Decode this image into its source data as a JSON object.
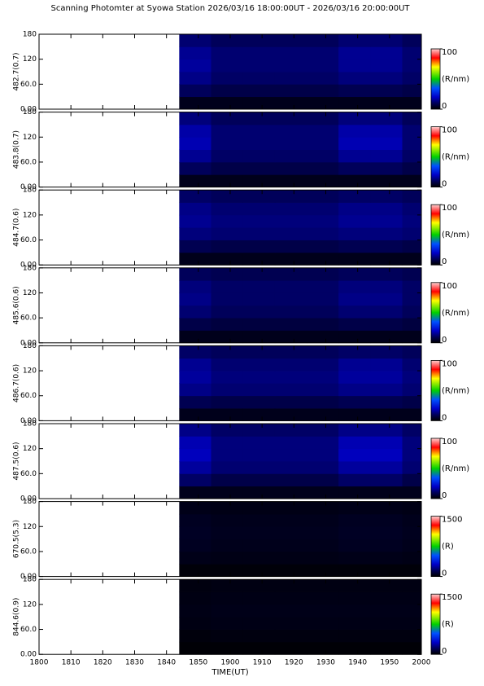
{
  "colorscale": [
    [
      0,
      "#000000"
    ],
    [
      0.1,
      "#00005a"
    ],
    [
      0.2,
      "#0000c8"
    ],
    [
      0.35,
      "#0050ff"
    ],
    [
      0.5,
      "#00d000"
    ],
    [
      0.7,
      "#ffff00"
    ],
    [
      0.85,
      "#ff0000"
    ],
    [
      1,
      "#ffd0d0"
    ]
  ],
  "chart_data": [
    {
      "type": "heatmap",
      "title": "Scanning Photomter at Syowa Station 2026/03/16 18:00:00UT - 2026/03/16 20:00:00UT",
      "ylabel": "482.7(0.7)",
      "xlim": [
        1080,
        1200
      ],
      "ylim": [
        0,
        180
      ],
      "yticks": [
        {
          "value": 0,
          "label": "0.00"
        },
        {
          "value": 60,
          "label": "60.0"
        },
        120,
        180
      ],
      "zlim": [
        0,
        100
      ],
      "zticks": [
        0,
        100
      ],
      "zlabel": "(R/nm)",
      "x_edges": [
        1124,
        1134,
        1144,
        1154,
        1164,
        1174,
        1184,
        1194,
        1200
      ],
      "y_edges": [
        0,
        30,
        60,
        90,
        120,
        150,
        180
      ],
      "z": [
        [
          3,
          3,
          3,
          3,
          3,
          3,
          3,
          3
        ],
        [
          10,
          8,
          8,
          8,
          8,
          9,
          9,
          8
        ],
        [
          14,
          11,
          11,
          11,
          11,
          13,
          13,
          11
        ],
        [
          16,
          12,
          12,
          12,
          12,
          15,
          15,
          12
        ],
        [
          15,
          12,
          12,
          12,
          12,
          15,
          15,
          12
        ],
        [
          12,
          10,
          10,
          10,
          10,
          12,
          12,
          10
        ]
      ]
    },
    {
      "type": "heatmap",
      "ylabel": "483.8(0.7)",
      "xlim": [
        1080,
        1200
      ],
      "ylim": [
        0,
        180
      ],
      "yticks": [
        {
          "value": 0,
          "label": "0.00"
        },
        {
          "value": 60,
          "label": "60.0"
        },
        120,
        180
      ],
      "zlim": [
        0,
        100
      ],
      "zticks": [
        0,
        100
      ],
      "zlabel": "(R/nm)",
      "x_edges": [
        1124,
        1134,
        1144,
        1154,
        1164,
        1174,
        1184,
        1194,
        1200
      ],
      "y_edges": [
        0,
        30,
        60,
        90,
        120,
        150,
        180
      ],
      "z": [
        [
          3,
          3,
          3,
          3,
          3,
          3,
          3,
          3
        ],
        [
          10,
          8,
          8,
          8,
          8,
          10,
          10,
          8
        ],
        [
          15,
          11,
          11,
          11,
          11,
          15,
          15,
          11
        ],
        [
          18,
          12,
          12,
          12,
          12,
          18,
          18,
          12
        ],
        [
          17,
          12,
          12,
          12,
          12,
          17,
          17,
          12
        ],
        [
          13,
          10,
          10,
          10,
          10,
          13,
          13,
          10
        ]
      ]
    },
    {
      "type": "heatmap",
      "ylabel": "484.7(0.6)",
      "xlim": [
        1080,
        1200
      ],
      "ylim": [
        0,
        180
      ],
      "yticks": [
        {
          "value": 0,
          "label": "0.00"
        },
        {
          "value": 60,
          "label": "60.0"
        },
        120,
        180
      ],
      "zlim": [
        0,
        100
      ],
      "zticks": [
        0,
        100
      ],
      "zlabel": "(R/nm)",
      "x_edges": [
        1124,
        1134,
        1144,
        1154,
        1164,
        1174,
        1184,
        1194,
        1200
      ],
      "y_edges": [
        0,
        30,
        60,
        90,
        120,
        150,
        180
      ],
      "z": [
        [
          3,
          3,
          3,
          3,
          3,
          3,
          3,
          3
        ],
        [
          9,
          8,
          8,
          8,
          8,
          9,
          9,
          8
        ],
        [
          13,
          12,
          12,
          12,
          12,
          13,
          13,
          12
        ],
        [
          15,
          13,
          13,
          13,
          13,
          15,
          15,
          13
        ],
        [
          14,
          12,
          12,
          12,
          12,
          14,
          14,
          12
        ],
        [
          11,
          10,
          10,
          10,
          10,
          11,
          11,
          10
        ]
      ]
    },
    {
      "type": "heatmap",
      "ylabel": "485.6(0.6)",
      "xlim": [
        1080,
        1200
      ],
      "ylim": [
        0,
        180
      ],
      "yticks": [
        {
          "value": 0,
          "label": "0.00"
        },
        {
          "value": 60,
          "label": "60.0"
        },
        120,
        180
      ],
      "zlim": [
        0,
        100
      ],
      "zticks": [
        0,
        100
      ],
      "zlabel": "(R/nm)",
      "x_edges": [
        1124,
        1134,
        1144,
        1154,
        1164,
        1174,
        1184,
        1194,
        1200
      ],
      "y_edges": [
        0,
        30,
        60,
        90,
        120,
        150,
        180
      ],
      "z": [
        [
          3,
          3,
          3,
          3,
          3,
          3,
          3,
          3
        ],
        [
          8,
          7,
          7,
          7,
          7,
          8,
          8,
          7
        ],
        [
          12,
          10,
          10,
          10,
          10,
          12,
          12,
          10
        ],
        [
          14,
          11,
          11,
          11,
          11,
          14,
          14,
          11
        ],
        [
          13,
          11,
          11,
          11,
          11,
          13,
          13,
          11
        ],
        [
          10,
          9,
          9,
          9,
          9,
          10,
          10,
          9
        ]
      ]
    },
    {
      "type": "heatmap",
      "ylabel": "486.7(0.6)",
      "xlim": [
        1080,
        1200
      ],
      "ylim": [
        0,
        180
      ],
      "yticks": [
        {
          "value": 0,
          "label": "0.00"
        },
        {
          "value": 60,
          "label": "60.0"
        },
        120,
        180
      ],
      "zlim": [
        0,
        100
      ],
      "zticks": [
        0,
        100
      ],
      "zlabel": "(R/nm)",
      "x_edges": [
        1124,
        1134,
        1144,
        1154,
        1164,
        1174,
        1184,
        1194,
        1200
      ],
      "y_edges": [
        0,
        30,
        60,
        90,
        120,
        150,
        180
      ],
      "z": [
        [
          3,
          3,
          3,
          3,
          3,
          3,
          3,
          3
        ],
        [
          9,
          8,
          8,
          8,
          8,
          9,
          9,
          8
        ],
        [
          14,
          12,
          12,
          12,
          12,
          14,
          14,
          12
        ],
        [
          16,
          13,
          13,
          13,
          13,
          16,
          16,
          13
        ],
        [
          15,
          12,
          12,
          12,
          12,
          15,
          15,
          12
        ],
        [
          11,
          10,
          10,
          10,
          10,
          11,
          11,
          10
        ]
      ]
    },
    {
      "type": "heatmap",
      "ylabel": "487.5(0.6)",
      "xlim": [
        1080,
        1200
      ],
      "ylim": [
        0,
        180
      ],
      "yticks": [
        {
          "value": 0,
          "label": "0.00"
        },
        {
          "value": 60,
          "label": "60.0"
        },
        120,
        180
      ],
      "zlim": [
        0,
        100
      ],
      "zticks": [
        0,
        100
      ],
      "zlabel": "(R/nm)",
      "x_edges": [
        1124,
        1134,
        1144,
        1154,
        1164,
        1174,
        1184,
        1194,
        1200
      ],
      "y_edges": [
        0,
        30,
        60,
        90,
        120,
        150,
        180
      ],
      "z": [
        [
          3,
          3,
          3,
          3,
          3,
          3,
          3,
          3
        ],
        [
          11,
          8,
          8,
          8,
          8,
          11,
          11,
          8
        ],
        [
          16,
          12,
          12,
          12,
          12,
          16,
          16,
          12
        ],
        [
          19,
          13,
          13,
          13,
          13,
          19,
          19,
          13
        ],
        [
          18,
          13,
          13,
          13,
          13,
          18,
          18,
          13
        ],
        [
          14,
          11,
          11,
          11,
          11,
          14,
          14,
          11
        ]
      ]
    },
    {
      "type": "heatmap",
      "ylabel": "670.5(5.3)",
      "xlim": [
        1080,
        1200
      ],
      "ylim": [
        0,
        180
      ],
      "yticks": [
        {
          "value": 0,
          "label": "0.00"
        },
        {
          "value": 60,
          "label": "60.0"
        },
        120,
        180
      ],
      "zlim": [
        0,
        1500
      ],
      "zticks": [
        0,
        1500
      ],
      "zlabel": "(R)",
      "x_edges": [
        1124,
        1134,
        1144,
        1154,
        1164,
        1174,
        1184,
        1194,
        1200
      ],
      "y_edges": [
        0,
        30,
        60,
        90,
        120,
        150,
        180
      ],
      "z": [
        [
          15,
          15,
          15,
          15,
          15,
          15,
          15,
          15
        ],
        [
          40,
          35,
          35,
          35,
          35,
          40,
          40,
          35
        ],
        [
          55,
          45,
          45,
          45,
          45,
          55,
          55,
          45
        ],
        [
          60,
          50,
          50,
          50,
          50,
          60,
          60,
          50
        ],
        [
          55,
          45,
          45,
          45,
          45,
          55,
          55,
          45
        ],
        [
          40,
          35,
          35,
          35,
          35,
          40,
          40,
          35
        ]
      ]
    },
    {
      "type": "heatmap",
      "ylabel": "844.6(0.9)",
      "xlabel": "TIME(UT)",
      "xlim": [
        1080,
        1200
      ],
      "ylim": [
        0,
        180
      ],
      "yticks": [
        {
          "value": 0,
          "label": "0.00"
        },
        {
          "value": 60,
          "label": "60.0"
        },
        120,
        180
      ],
      "zlim": [
        0,
        1500
      ],
      "zticks": [
        0,
        1500
      ],
      "zlabel": "(R)",
      "xticks": [
        {
          "value": 1080,
          "label": "1800"
        },
        {
          "value": 1090,
          "label": "1810"
        },
        {
          "value": 1100,
          "label": "1820"
        },
        {
          "value": 1110,
          "label": "1830"
        },
        {
          "value": 1120,
          "label": "1840"
        },
        {
          "value": 1130,
          "label": "1850"
        },
        {
          "value": 1140,
          "label": "1900"
        },
        {
          "value": 1150,
          "label": "1910"
        },
        {
          "value": 1160,
          "label": "1920"
        },
        {
          "value": 1170,
          "label": "1930"
        },
        {
          "value": 1180,
          "label": "1940"
        },
        {
          "value": 1190,
          "label": "1950"
        },
        {
          "value": 1200,
          "label": "2000"
        }
      ],
      "x_edges": [
        1124,
        1134,
        1144,
        1154,
        1164,
        1174,
        1184,
        1194,
        1200
      ],
      "y_edges": [
        0,
        30,
        60,
        90,
        120,
        150,
        180
      ],
      "z": [
        [
          10,
          10,
          10,
          10,
          10,
          10,
          10,
          10
        ],
        [
          20,
          25,
          25,
          25,
          25,
          25,
          25,
          25
        ],
        [
          30,
          35,
          35,
          35,
          35,
          35,
          35,
          35
        ],
        [
          35,
          40,
          40,
          40,
          40,
          40,
          40,
          40
        ],
        [
          30,
          35,
          35,
          35,
          35,
          35,
          35,
          35
        ],
        [
          25,
          30,
          30,
          30,
          30,
          30,
          30,
          30
        ]
      ]
    }
  ]
}
